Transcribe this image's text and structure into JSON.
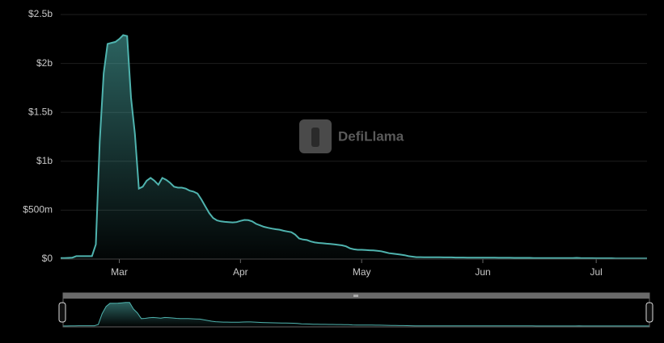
{
  "chart_data": {
    "type": "area",
    "watermark": "DefiLlama",
    "color": "#4fb3ae",
    "categories": [
      null,
      null,
      null,
      null,
      null,
      null,
      null,
      null,
      null,
      null,
      null,
      null,
      null,
      null,
      null,
      "Mar",
      null,
      null,
      null,
      null,
      null,
      null,
      null,
      null,
      null,
      null,
      null,
      null,
      null,
      null,
      null,
      null,
      null,
      null,
      null,
      null,
      null,
      null,
      null,
      null,
      null,
      null,
      null,
      null,
      null,
      null,
      "Apr",
      null,
      null,
      null,
      null,
      null,
      null,
      null,
      null,
      null,
      null,
      null,
      null,
      null,
      null,
      null,
      null,
      null,
      null,
      null,
      null,
      null,
      null,
      null,
      null,
      null,
      null,
      null,
      null,
      null,
      null,
      "May",
      null,
      null,
      null,
      null,
      null,
      null,
      null,
      null,
      null,
      null,
      null,
      null,
      null,
      null,
      null,
      null,
      null,
      null,
      null,
      null,
      null,
      null,
      null,
      null,
      null,
      null,
      null,
      null,
      null,
      null,
      "Jun",
      null,
      null,
      null,
      null,
      null,
      null,
      null,
      null,
      null,
      null,
      null,
      null,
      null,
      null,
      null,
      null,
      null,
      null,
      null,
      null,
      null,
      null,
      null,
      null,
      null,
      null,
      null,
      null,
      "Jul",
      null,
      null,
      null,
      null,
      null,
      null,
      null,
      null,
      null,
      null,
      null,
      null,
      null
    ],
    "values": [
      10000000.0,
      10000000.0,
      12000000.0,
      15000000.0,
      30000000.0,
      30000000.0,
      30000000.0,
      30000000.0,
      30000000.0,
      150000000.0,
      1200000000.0,
      1900000000.0,
      2200000000.0,
      2210000000.0,
      2220000000.0,
      2250000000.0,
      2290000000.0,
      2280000000.0,
      1650000000.0,
      1280000000.0,
      720000000.0,
      740000000.0,
      800000000.0,
      830000000.0,
      800000000.0,
      760000000.0,
      830000000.0,
      810000000.0,
      780000000.0,
      740000000.0,
      730000000.0,
      730000000.0,
      720000000.0,
      700000000.0,
      690000000.0,
      670000000.0,
      610000000.0,
      540000000.0,
      470000000.0,
      420000000.0,
      395000000.0,
      385000000.0,
      380000000.0,
      378000000.0,
      375000000.0,
      378000000.0,
      390000000.0,
      400000000.0,
      398000000.0,
      385000000.0,
      360000000.0,
      345000000.0,
      330000000.0,
      320000000.0,
      312000000.0,
      305000000.0,
      300000000.0,
      290000000.0,
      282000000.0,
      275000000.0,
      250000000.0,
      210000000.0,
      200000000.0,
      195000000.0,
      180000000.0,
      170000000.0,
      165000000.0,
      162000000.0,
      158000000.0,
      155000000.0,
      150000000.0,
      145000000.0,
      140000000.0,
      130000000.0,
      110000000.0,
      100000000.0,
      95000000.0,
      95000000.0,
      92000000.0,
      90000000.0,
      88000000.0,
      85000000.0,
      80000000.0,
      70000000.0,
      60000000.0,
      55000000.0,
      50000000.0,
      45000000.0,
      40000000.0,
      30000000.0,
      25000000.0,
      20000000.0,
      20000000.0,
      19000000.0,
      19000000.0,
      18000000.0,
      18000000.0,
      18000000.0,
      17000000.0,
      17000000.0,
      17000000.0,
      16000000.0,
      16000000.0,
      16000000.0,
      15000000.0,
      15000000.0,
      15000000.0,
      15000000.0,
      14000000.0,
      14000000.0,
      14000000.0,
      14000000.0,
      13000000.0,
      13000000.0,
      13000000.0,
      13000000.0,
      12000000.0,
      12000000.0,
      12000000.0,
      12000000.0,
      12000000.0,
      11000000.0,
      11000000.0,
      11000000.0,
      11000000.0,
      11000000.0,
      10000000.0,
      10000000.0,
      10000000.0,
      10000000.0,
      10000000.0,
      10000000.0,
      12000000.0,
      10000000.0,
      9000000.0,
      9000000.0,
      9000000.0,
      8000000.0,
      8000000.0,
      8000000.0,
      8000000.0,
      8000000.0,
      7000000.0,
      7000000.0,
      7000000.0,
      7000000.0,
      7000000.0,
      6000000.0,
      6000000.0,
      6000000.0,
      6000000.0
    ],
    "ylim": [
      0,
      2500000000
    ],
    "yticks": [
      {
        "value": 0,
        "label": "$0"
      },
      {
        "value": 500000000,
        "label": "$500m"
      },
      {
        "value": 1000000000,
        "label": "$1b"
      },
      {
        "value": 1500000000,
        "label": "$1.5b"
      },
      {
        "value": 2000000000,
        "label": "$2b"
      },
      {
        "value": 2500000000,
        "label": "$2.5b"
      }
    ],
    "grid": true
  }
}
